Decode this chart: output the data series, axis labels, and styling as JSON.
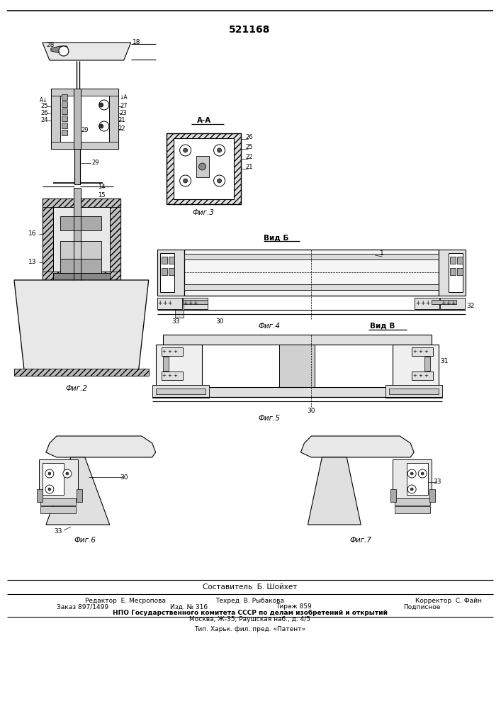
{
  "title_number": "521168",
  "fig2_label": "Фиг.2",
  "fig3_label": "Фиг.3",
  "fig4_label": "Фиг.4",
  "fig5_label": "Фиг.5",
  "fig6_label": "Фиг.6",
  "fig7_label": "Фиг.7",
  "section_aa": "А-А",
  "view_b": "Вид Б",
  "view_v": "Вид В",
  "footer_composer": "Составитель  Б. Шойхет",
  "footer_editor": "Редактор  Е. Месропова",
  "footer_tech": "Техред  В. Рыбакова",
  "footer_corr": "Корректор  С. Файн",
  "footer_order": "Заказ 897/1499",
  "footer_pub": "Изд. № 316",
  "footer_print": "Тираж 859",
  "footer_sub": "Подписное",
  "footer_org": "НПО Государственного комитета СССР по делам изобретений и открытий",
  "footer_addr": "Москва, Ж-35, Раушская наб., д. 4/5",
  "footer_tip": "Тип. Харьк. фил. пред. «Патент»",
  "bg_color": "#ffffff"
}
